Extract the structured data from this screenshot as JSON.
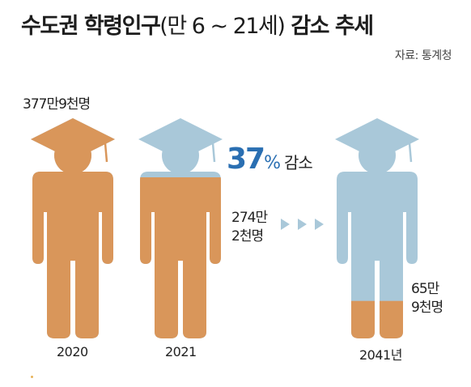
{
  "title": {
    "main": "수도권 학령인구",
    "paren": "(만 6 ~ 21세)",
    "tail": "감소 추세"
  },
  "source": "자료: 통계청",
  "chart_data": {
    "type": "pictograph",
    "categories": [
      "2020",
      "2021",
      "2041년"
    ],
    "values": [
      3779000,
      2742000,
      659000
    ],
    "value_labels": [
      "377만9천명",
      "274만\n2천명",
      "65만\n9천명"
    ],
    "annotation": {
      "number": "37",
      "symbol": "%",
      "text": "감소"
    },
    "colors": {
      "population": "#d9965a",
      "cap": "#a9c8d9"
    }
  }
}
